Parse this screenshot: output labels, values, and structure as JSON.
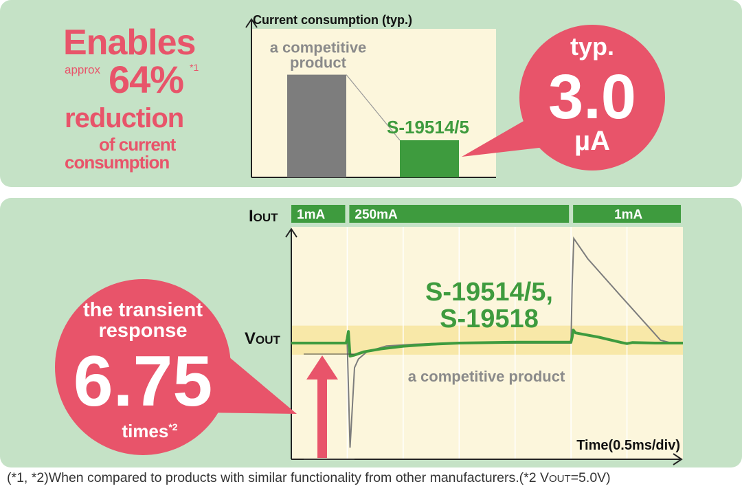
{
  "top": {
    "headline": {
      "enables": "Enables",
      "approx": "approx",
      "percent": "64%",
      "percent_note": "*1",
      "reduction": "reduction",
      "of_current": "of current",
      "consumption": "consumption"
    },
    "bubble": {
      "typ": "typ.",
      "value": "3.0",
      "unit": "µA"
    }
  },
  "bottom": {
    "bubble": {
      "line1": "the transient",
      "line2": "response",
      "value": "6.75",
      "times": "times",
      "times_note": "*2"
    }
  },
  "footnote": {
    "text": "(*1, *2)When compared to products with similar functionality from other manufacturers.(*2  V",
    "sub": "OUT",
    "tail": "=5.0V)"
  },
  "colors": {
    "pink": "#e8546a",
    "green": "#3e9b3e",
    "gray": "#7d7d7d",
    "panel": "#c5e2c6",
    "plot": "#fcf6dc",
    "band": "#f8e8a8"
  },
  "chart_data": [
    {
      "type": "bar",
      "title": "Current consumption (typ.)",
      "categories": [
        "a competitive product",
        "S-19514/5"
      ],
      "values": [
        8.3,
        3.0
      ],
      "ylim": [
        0,
        12
      ],
      "xlabel": "",
      "ylabel": "",
      "grid": false,
      "bar_colors": [
        "#7d7d7d",
        "#3e9b3e"
      ]
    },
    {
      "type": "line",
      "title": "",
      "xlabel": "Time(0.5ms/div)",
      "ylabel": "VOUT",
      "ylabel_main": "V",
      "ylabel_sub": "OUT",
      "iout_label_main": "I",
      "iout_label_sub": "OUT",
      "iout_segments": [
        {
          "label": "1mA",
          "start": 0,
          "end": 1.0
        },
        {
          "label": "250mA",
          "start": 1.0,
          "end": 5.0
        },
        {
          "label": "1mA",
          "start": 5.0,
          "end": 7.0
        }
      ],
      "xlim": [
        0,
        7
      ],
      "ylim": [
        -4,
        4
      ],
      "band": [
        -0.4,
        0.6
      ],
      "grid": true,
      "series": [
        {
          "name": "S-19514/5, S-19518",
          "name_line1": "S-19514/5,",
          "name_line2": "S-19518",
          "color": "#3e9b3e",
          "x": [
            0,
            0.98,
            1.0,
            1.02,
            1.05,
            1.12,
            1.3,
            1.6,
            2.0,
            2.5,
            3.0,
            4.0,
            5.0,
            5.02,
            5.04,
            5.08,
            5.5,
            5.9,
            6.0,
            6.1,
            6.5,
            7.0
          ],
          "y": [
            0,
            0,
            0.15,
            0.4,
            -0.45,
            -0.42,
            -0.3,
            -0.2,
            -0.11,
            -0.04,
            0.0,
            0.03,
            0.03,
            0.2,
            0.45,
            0.35,
            0.2,
            0.02,
            -0.02,
            0.02,
            0.0,
            0.0
          ]
        },
        {
          "name": "a competitive product",
          "color": "#7d7d7d",
          "x": [
            0,
            1.0,
            1.02,
            1.05,
            1.08,
            1.13,
            1.2,
            1.35,
            1.7,
            2.2,
            2.8,
            5.0,
            5.02,
            5.05,
            5.3,
            5.9,
            6.6,
            6.8,
            7.0
          ],
          "y": [
            0,
            0,
            -1.5,
            -3.6,
            -2.6,
            -0.85,
            -0.55,
            -0.3,
            -0.1,
            -0.04,
            0.0,
            0.0,
            2.0,
            3.6,
            2.9,
            1.6,
            0.1,
            0.0,
            0.0
          ]
        }
      ]
    }
  ]
}
